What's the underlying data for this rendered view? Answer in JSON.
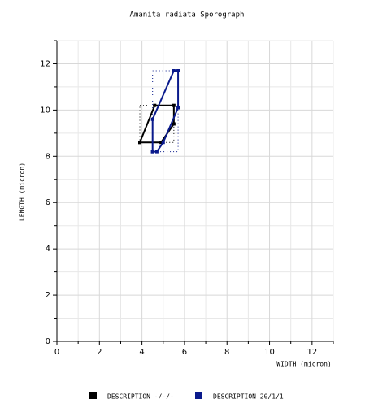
{
  "chart_data": {
    "type": "polygon",
    "title": "Amanita radiata Sporograph",
    "xlabel": "WIDTH (micron)",
    "ylabel": "LENGTH (micron)",
    "xlim": [
      0,
      13
    ],
    "ylim": [
      0,
      13
    ],
    "xticks": [
      0,
      2,
      4,
      6,
      8,
      10,
      12
    ],
    "yticks": [
      0,
      2,
      4,
      6,
      8,
      10,
      12
    ],
    "xminor_ticks": [
      1,
      3,
      5,
      7,
      9,
      11,
      13
    ],
    "yminor_ticks": [
      1,
      3,
      5,
      7,
      9,
      11,
      13
    ],
    "grid": true,
    "series": [
      {
        "name": "DESCRIPTION -/-/-",
        "color": "#000000",
        "x": [
          3.9,
          4.6,
          5.5,
          5.5,
          4.9,
          3.9
        ],
        "values": [
          8.6,
          10.2,
          10.2,
          9.4,
          8.6,
          8.6
        ],
        "range_x": [
          3.9,
          5.5
        ],
        "range_y": [
          8.6,
          10.2
        ]
      },
      {
        "name": "DESCRIPTION 20/1/1",
        "color": "#0a1a8c",
        "x": [
          4.5,
          4.5,
          5.5,
          5.7,
          5.7,
          5.0,
          4.7,
          4.5
        ],
        "values": [
          8.2,
          9.6,
          11.7,
          11.7,
          10.1,
          8.6,
          8.2,
          8.2
        ],
        "range_x": [
          4.5,
          5.7
        ],
        "range_y": [
          8.2,
          11.7
        ]
      }
    ]
  }
}
